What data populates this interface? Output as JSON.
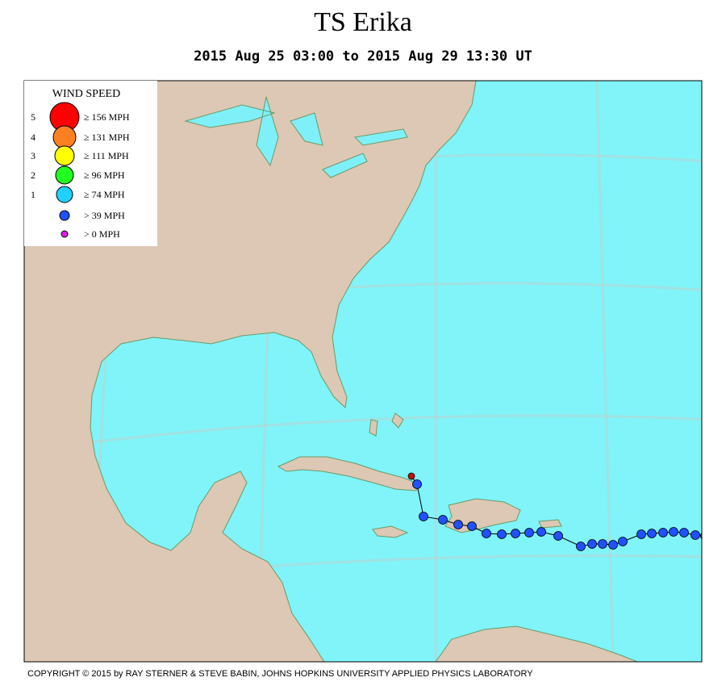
{
  "header": {
    "title": "TS Erika",
    "subtitle": "2015 Aug 25 03:00 to 2015 Aug 29 13:30 UT"
  },
  "legend": {
    "title": "WIND SPEED",
    "items": [
      {
        "category": "5",
        "label": "≥ 156 MPH",
        "color": "#ff0000"
      },
      {
        "category": "4",
        "label": "≥ 131 MPH",
        "color": "#ff8020"
      },
      {
        "category": "3",
        "label": "≥ 111 MPH",
        "color": "#ffff00"
      },
      {
        "category": "2",
        "label": "≥ 96 MPH",
        "color": "#20ff20"
      },
      {
        "category": "1",
        "label": "≥ 74 MPH",
        "color": "#20d0ff"
      },
      {
        "label": "> 39 MPH",
        "color": "#2050ff"
      },
      {
        "label": "> 0 MPH",
        "color": "#e020e0"
      }
    ]
  },
  "footer": {
    "copyright": "COPYRIGHT © 2015 by RAY STERNER & STEVE BABIN, JOHNS HOPKINS UNIVERSITY APPLIED PHYSICS LABORATORY"
  }
}
